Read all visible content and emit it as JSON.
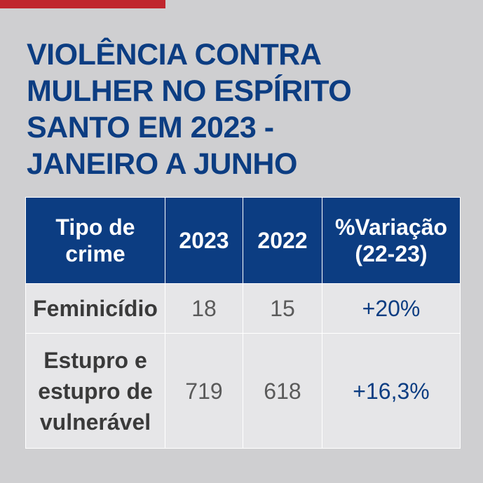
{
  "colors": {
    "accent": "#c0262e",
    "brand_blue": "#0c3d82",
    "background": "#cfcfd1",
    "cell_background": "#e6e6e8"
  },
  "title_lines": [
    "VIOLÊNCIA CONTRA",
    "MULHER NO ESPÍRITO",
    "SANTO EM 2023 -",
    "JANEIRO A JUNHO"
  ],
  "chart_data": {
    "type": "table",
    "title": "VIOLÊNCIA CONTRA MULHER NO ESPÍRITO SANTO EM 2023 - JANEIRO A JUNHO",
    "columns": [
      "Tipo de crime",
      "2023",
      "2022",
      "%Variação (22-23)"
    ],
    "header": {
      "crime_type": [
        "Tipo de",
        "crime"
      ],
      "year_2023": "2023",
      "year_2022": "2022",
      "variation": [
        "%Variação",
        "(22-23)"
      ]
    },
    "rows": [
      {
        "crime": [
          "Feminicídio"
        ],
        "v2023": "18",
        "v2022": "15",
        "variation": "+20%"
      },
      {
        "crime": [
          "Estupro e",
          "estupro de",
          "vulnerável"
        ],
        "v2023": "719",
        "v2022": "618",
        "variation": "+16,3%"
      }
    ]
  }
}
